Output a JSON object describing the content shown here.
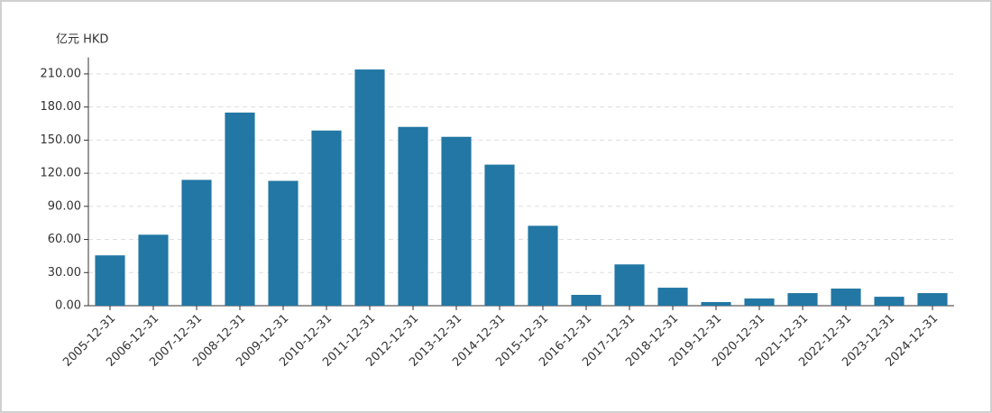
{
  "chart_data": {
    "type": "bar",
    "y_unit": "亿元  HKD",
    "categories": [
      "2005-12-31",
      "2006-12-31",
      "2007-12-31",
      "2008-12-31",
      "2009-12-31",
      "2010-12-31",
      "2011-12-31",
      "2012-12-31",
      "2013-12-31",
      "2014-12-31",
      "2015-12-31",
      "2016-12-31",
      "2017-12-31",
      "2018-12-31",
      "2019-12-31",
      "2020-12-31",
      "2021-12-31",
      "2022-12-31",
      "2023-12-31",
      "2024-12-31"
    ],
    "values": [
      45.6,
      64.3,
      114,
      175,
      113.1,
      158.7,
      214,
      162,
      153,
      127.8,
      72.4,
      9.8,
      37.4,
      16.3,
      3.3,
      6.5,
      11.4,
      15.5,
      8.1,
      11.4
    ],
    "color": "#2277a4",
    "ylim": [
      0,
      225
    ],
    "yticks": [
      {
        "value": 0,
        "label": "0.00"
      },
      {
        "value": 30,
        "label": "30.00"
      },
      {
        "value": 60,
        "label": "60.00"
      },
      {
        "value": 90,
        "label": "90.00"
      },
      {
        "value": 120,
        "label": "120.00"
      },
      {
        "value": 150,
        "label": "150.00"
      },
      {
        "value": 180,
        "label": "180.00"
      },
      {
        "value": 210,
        "label": "210.00"
      }
    ],
    "grid": true
  }
}
